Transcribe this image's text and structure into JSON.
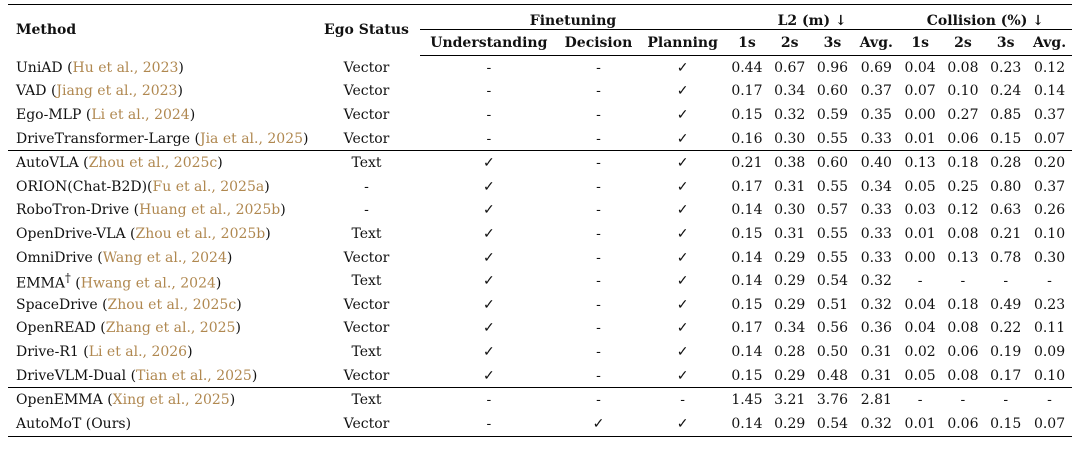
{
  "header": {
    "method": "Method",
    "ego_status": "Ego Status",
    "finetuning": "Finetuning",
    "understanding": "Understanding",
    "decision": "Decision",
    "planning": "Planning",
    "l2": "L2 (m) ↓",
    "collision": "Collision (%) ↓",
    "t1": "1s",
    "t2": "2s",
    "t3": "3s",
    "avg": "Avg."
  },
  "groups": [
    [
      {
        "name": "UniAD (",
        "cite": "Hu et al., 2023",
        "tail": ")",
        "sup": "",
        "ego": "Vector",
        "u": "-",
        "d": "-",
        "p": "✓",
        "l2": [
          "0.44",
          "0.67",
          "0.96",
          "0.69"
        ],
        "col": [
          "0.04",
          "0.08",
          "0.23",
          "0.12"
        ]
      },
      {
        "name": "VAD (",
        "cite": "Jiang et al., 2023",
        "tail": ")",
        "sup": "",
        "ego": "Vector",
        "u": "-",
        "d": "-",
        "p": "✓",
        "l2": [
          "0.17",
          "0.34",
          "0.60",
          "0.37"
        ],
        "col": [
          "0.07",
          "0.10",
          "0.24",
          "0.14"
        ]
      },
      {
        "name": "Ego-MLP (",
        "cite": "Li et al., 2024",
        "tail": ")",
        "sup": "",
        "ego": "Vector",
        "u": "-",
        "d": "-",
        "p": "✓",
        "l2": [
          "0.15",
          "0.32",
          "0.59",
          "0.35"
        ],
        "col": [
          "0.00",
          "0.27",
          "0.85",
          "0.37"
        ]
      },
      {
        "name": "DriveTransformer-Large (",
        "cite": "Jia et al., 2025",
        "tail": ")",
        "sup": "",
        "ego": "Vector",
        "u": "-",
        "d": "-",
        "p": "✓",
        "l2": [
          "0.16",
          "0.30",
          "0.55",
          "0.33"
        ],
        "col": [
          "0.01",
          "0.06",
          "0.15",
          "0.07"
        ]
      }
    ],
    [
      {
        "name": "AutoVLA (",
        "cite": "Zhou et al., 2025c",
        "tail": ")",
        "sup": "",
        "ego": "Text",
        "u": "✓",
        "d": "-",
        "p": "✓",
        "l2": [
          "0.21",
          "0.38",
          "0.60",
          "0.40"
        ],
        "col": [
          "0.13",
          "0.18",
          "0.28",
          "0.20"
        ]
      },
      {
        "name": "ORION(Chat-B2D)(",
        "cite": "Fu et al., 2025a",
        "tail": ")",
        "sup": "",
        "ego": "-",
        "u": "✓",
        "d": "-",
        "p": "✓",
        "l2": [
          "0.17",
          "0.31",
          "0.55",
          "0.34"
        ],
        "col": [
          "0.05",
          "0.25",
          "0.80",
          "0.37"
        ]
      },
      {
        "name": "RoboTron-Drive (",
        "cite": "Huang et al., 2025b",
        "tail": ")",
        "sup": "",
        "ego": "-",
        "u": "✓",
        "d": "-",
        "p": "✓",
        "l2": [
          "0.14",
          "0.30",
          "0.57",
          "0.33"
        ],
        "col": [
          "0.03",
          "0.12",
          "0.63",
          "0.26"
        ]
      },
      {
        "name": "OpenDrive-VLA (",
        "cite": "Zhou et al., 2025b",
        "tail": ")",
        "sup": "",
        "ego": "Text",
        "u": "✓",
        "d": "-",
        "p": "✓",
        "l2": [
          "0.15",
          "0.31",
          "0.55",
          "0.33"
        ],
        "col": [
          "0.01",
          "0.08",
          "0.21",
          "0.10"
        ]
      },
      {
        "name": "OmniDrive (",
        "cite": "Wang et al., 2024",
        "tail": ")",
        "sup": "",
        "ego": "Vector",
        "u": "✓",
        "d": "-",
        "p": "✓",
        "l2": [
          "0.14",
          "0.29",
          "0.55",
          "0.33"
        ],
        "col": [
          "0.00",
          "0.13",
          "0.78",
          "0.30"
        ]
      },
      {
        "name": "EMMA",
        "cite": "Hwang et al., 2024",
        "tail": ")",
        "sup": "†",
        "ego": "Text",
        "u": "✓",
        "d": "-",
        "p": "✓",
        "l2": [
          "0.14",
          "0.29",
          "0.54",
          "0.32"
        ],
        "col": [
          "-",
          "-",
          "-",
          "-"
        ]
      },
      {
        "name": "SpaceDrive (",
        "cite": "Zhou et al., 2025c",
        "tail": ")",
        "sup": "",
        "ego": "Vector",
        "u": "✓",
        "d": "-",
        "p": "✓",
        "l2": [
          "0.15",
          "0.29",
          "0.51",
          "0.32"
        ],
        "col": [
          "0.04",
          "0.18",
          "0.49",
          "0.23"
        ]
      },
      {
        "name": "OpenREAD (",
        "cite": "Zhang et al., 2025",
        "tail": ")",
        "sup": "",
        "ego": "Vector",
        "u": "✓",
        "d": "-",
        "p": "✓",
        "l2": [
          "0.17",
          "0.34",
          "0.56",
          "0.36"
        ],
        "col": [
          "0.04",
          "0.08",
          "0.22",
          "0.11"
        ]
      },
      {
        "name": "Drive-R1 (",
        "cite": "Li et al., 2026",
        "tail": ")",
        "sup": "",
        "ego": "Text",
        "u": "✓",
        "d": "-",
        "p": "✓",
        "l2": [
          "0.14",
          "0.28",
          "0.50",
          "0.31"
        ],
        "col": [
          "0.02",
          "0.06",
          "0.19",
          "0.09"
        ],
        "bold_l2": [
          1,
          3
        ]
      },
      {
        "name": "DriveVLM-Dual (",
        "cite": "Tian et al., 2025",
        "tail": ")",
        "sup": "",
        "ego": "Vector",
        "u": "✓",
        "d": "-",
        "p": "✓",
        "l2": [
          "0.15",
          "0.29",
          "0.48",
          "0.31"
        ],
        "col": [
          "0.05",
          "0.08",
          "0.17",
          "0.10"
        ],
        "bold_l2": [
          2,
          3
        ]
      }
    ],
    [
      {
        "name": "OpenEMMA (",
        "cite": "Xing et al., 2025",
        "tail": ")",
        "sup": "",
        "ego": "Text",
        "u": "-",
        "d": "-",
        "p": "-",
        "l2": [
          "1.45",
          "3.21",
          "3.76",
          "2.81"
        ],
        "col": [
          "-",
          "-",
          "-",
          "-"
        ]
      },
      {
        "name": "AutoMoT (Ours)",
        "cite": "",
        "tail": "",
        "sup": "",
        "ego": "Vector",
        "u": "-",
        "d": "✓",
        "p": "✓",
        "l2": [
          "0.14",
          "0.29",
          "0.54",
          "0.32"
        ],
        "col": [
          "0.01",
          "0.06",
          "0.15",
          "0.07"
        ],
        "bold_l2": [
          0
        ],
        "bold_col": [
          0,
          1,
          2,
          3
        ]
      }
    ]
  ]
}
